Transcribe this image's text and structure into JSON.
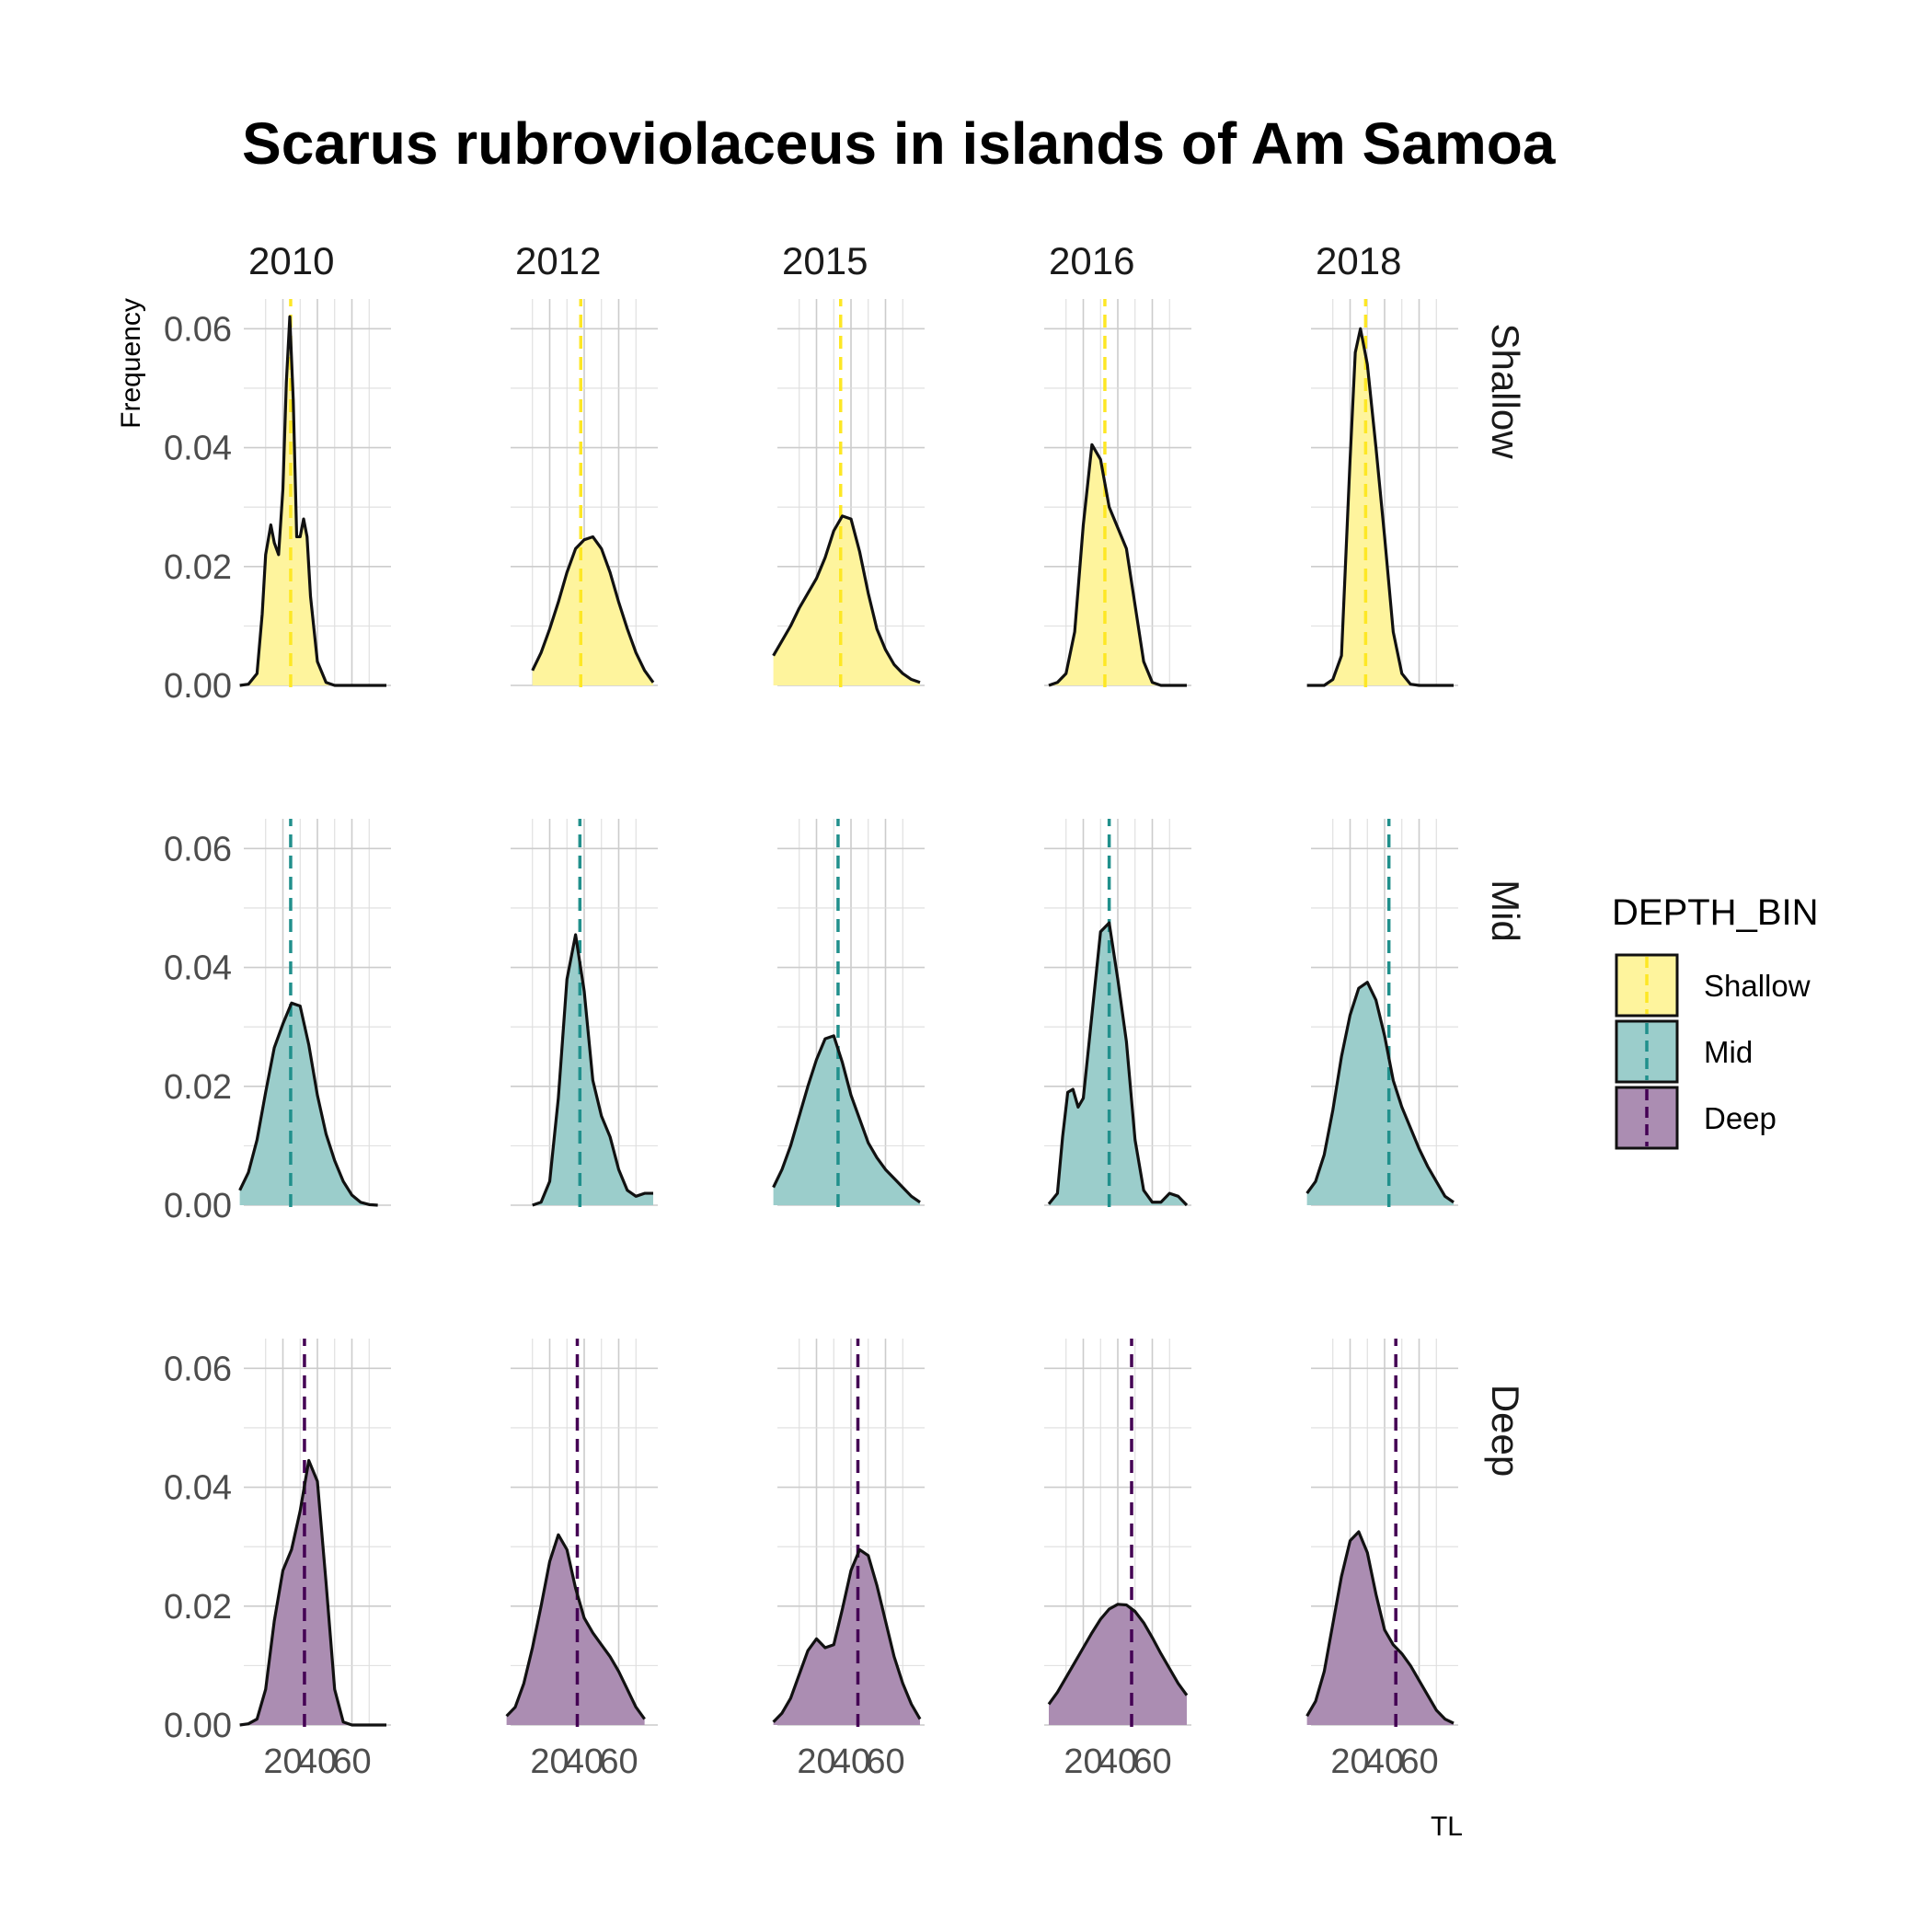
{
  "chart_data": {
    "type": "area",
    "title": "Scarus rubroviolaceus in islands of Am Samoa",
    "xlabel": "TL",
    "ylabel": "Frequency",
    "xlim": [
      0,
      80
    ],
    "ylim": [
      0,
      0.065
    ],
    "x_ticks": [
      20,
      40,
      60
    ],
    "x_tick_labels": [
      "20",
      "40",
      "60"
    ],
    "y_ticks": [
      0,
      0.02,
      0.04,
      0.06
    ],
    "y_tick_labels": [
      "0.00",
      "0.02",
      "0.04",
      "0.06"
    ],
    "grid": true,
    "columns": [
      "2010",
      "2012",
      "2015",
      "2016",
      "2018"
    ],
    "rows": [
      "Shallow",
      "Mid",
      "Deep"
    ],
    "legend": {
      "title": "DEPTH_BIN",
      "placement": "right",
      "entries": [
        {
          "label": "Shallow",
          "color": "#fde725"
        },
        {
          "label": "Mid",
          "color": "#21908c"
        },
        {
          "label": "Deep",
          "color": "#440154"
        }
      ]
    },
    "series": [
      {
        "year": "2010",
        "depth": "Shallow",
        "mean": 24.5,
        "x": [
          -5,
          0,
          5,
          8,
          10,
          13,
          15,
          17.5,
          20,
          22,
          24,
          26,
          28,
          30,
          32,
          34,
          36,
          40,
          45,
          50,
          60,
          70,
          80
        ],
        "y": [
          0,
          0.0002,
          0.002,
          0.012,
          0.022,
          0.027,
          0.024,
          0.022,
          0.033,
          0.051,
          0.062,
          0.048,
          0.025,
          0.025,
          0.028,
          0.025,
          0.015,
          0.004,
          0.0005,
          0,
          0,
          0,
          0
        ]
      },
      {
        "year": "2012",
        "depth": "Shallow",
        "mean": 38,
        "x": [
          10,
          15,
          20,
          25,
          30,
          35,
          40,
          45,
          50,
          55,
          60,
          65,
          70,
          75,
          80
        ],
        "y": [
          0.0025,
          0.0055,
          0.0095,
          0.014,
          0.019,
          0.023,
          0.0245,
          0.025,
          0.023,
          0.019,
          0.014,
          0.0095,
          0.0055,
          0.0025,
          0.0005
        ]
      },
      {
        "year": "2015",
        "depth": "Shallow",
        "mean": 34,
        "x": [
          -5,
          0,
          5,
          10,
          15,
          20,
          25,
          30,
          35,
          40,
          45,
          50,
          55,
          60,
          65,
          70,
          75,
          80
        ],
        "y": [
          0.005,
          0.0075,
          0.01,
          0.013,
          0.0155,
          0.018,
          0.0215,
          0.026,
          0.0285,
          0.028,
          0.0225,
          0.0155,
          0.0095,
          0.006,
          0.0035,
          0.002,
          0.001,
          0.0005
        ]
      },
      {
        "year": "2016",
        "depth": "Shallow",
        "mean": 32.5,
        "x": [
          0,
          5,
          10,
          15,
          20,
          25,
          30,
          35,
          40,
          45,
          50,
          55,
          60,
          65,
          70,
          75,
          80
        ],
        "y": [
          0,
          0.0005,
          0.002,
          0.009,
          0.027,
          0.0405,
          0.038,
          0.03,
          0.0265,
          0.023,
          0.0135,
          0.004,
          0.0005,
          0,
          0,
          0,
          0
        ]
      },
      {
        "year": "2018",
        "depth": "Shallow",
        "mean": 29,
        "x": [
          -5,
          5,
          10,
          15,
          20,
          23,
          26,
          30,
          35,
          40,
          45,
          50,
          55,
          60,
          70,
          80
        ],
        "y": [
          0,
          0,
          0.001,
          0.005,
          0.038,
          0.056,
          0.06,
          0.054,
          0.04,
          0.025,
          0.009,
          0.002,
          0.0002,
          0,
          0,
          0
        ]
      },
      {
        "year": "2010",
        "depth": "Mid",
        "mean": 24.5,
        "x": [
          -5,
          0,
          5,
          10,
          15,
          20,
          25,
          30,
          35,
          40,
          45,
          50,
          55,
          60,
          65,
          70,
          75
        ],
        "y": [
          0.0025,
          0.0055,
          0.011,
          0.019,
          0.0265,
          0.0305,
          0.034,
          0.0335,
          0.027,
          0.0185,
          0.012,
          0.0075,
          0.004,
          0.0017,
          0.0005,
          0.0001,
          0
        ]
      },
      {
        "year": "2012",
        "depth": "Mid",
        "mean": 37.5,
        "x": [
          10,
          15,
          20,
          25,
          30,
          35,
          40,
          45,
          50,
          55,
          60,
          65,
          70,
          75,
          80
        ],
        "y": [
          0,
          0.0005,
          0.004,
          0.018,
          0.038,
          0.0455,
          0.036,
          0.021,
          0.015,
          0.0115,
          0.006,
          0.0025,
          0.0015,
          0.002,
          0.002
        ]
      },
      {
        "year": "2015",
        "depth": "Mid",
        "mean": 32.5,
        "x": [
          -5,
          0,
          5,
          10,
          15,
          20,
          25,
          30,
          35,
          40,
          45,
          50,
          55,
          60,
          65,
          70,
          75,
          80
        ],
        "y": [
          0.003,
          0.006,
          0.01,
          0.015,
          0.02,
          0.0245,
          0.028,
          0.0285,
          0.024,
          0.0185,
          0.0145,
          0.0105,
          0.008,
          0.006,
          0.0045,
          0.003,
          0.0015,
          0.0005
        ]
      },
      {
        "year": "2016",
        "depth": "Mid",
        "mean": 35,
        "x": [
          0,
          5,
          8,
          11,
          14,
          17,
          20,
          25,
          30,
          35,
          40,
          45,
          50,
          55,
          60,
          65,
          70,
          75,
          80
        ],
        "y": [
          0.0002,
          0.002,
          0.0115,
          0.019,
          0.0195,
          0.0165,
          0.018,
          0.032,
          0.046,
          0.0475,
          0.038,
          0.0275,
          0.011,
          0.0025,
          0.0005,
          0.0005,
          0.002,
          0.0015,
          0
        ]
      },
      {
        "year": "2018",
        "depth": "Mid",
        "mean": 42.5,
        "x": [
          -5,
          0,
          5,
          10,
          15,
          20,
          25,
          30,
          35,
          40,
          45,
          50,
          55,
          60,
          65,
          70,
          75,
          80
        ],
        "y": [
          0.002,
          0.004,
          0.0085,
          0.016,
          0.025,
          0.032,
          0.0365,
          0.0375,
          0.0345,
          0.0285,
          0.021,
          0.0165,
          0.013,
          0.0095,
          0.0065,
          0.004,
          0.0015,
          0.0005
        ]
      },
      {
        "year": "2010",
        "depth": "Deep",
        "mean": 32.5,
        "x": [
          -5,
          0,
          5,
          10,
          15,
          20,
          25,
          30,
          35,
          40,
          45,
          50,
          55,
          60,
          70,
          80
        ],
        "y": [
          0,
          0.0002,
          0.001,
          0.006,
          0.0175,
          0.026,
          0.0295,
          0.036,
          0.0445,
          0.041,
          0.024,
          0.006,
          0.0005,
          0,
          0,
          0
        ]
      },
      {
        "year": "2012",
        "depth": "Deep",
        "mean": 36,
        "x": [
          -5,
          0,
          5,
          10,
          15,
          20,
          25,
          30,
          35,
          40,
          45,
          50,
          55,
          60,
          65,
          70,
          75
        ],
        "y": [
          0.0015,
          0.003,
          0.007,
          0.013,
          0.02,
          0.0275,
          0.032,
          0.0295,
          0.023,
          0.018,
          0.0155,
          0.0135,
          0.0115,
          0.009,
          0.006,
          0.003,
          0.001
        ]
      },
      {
        "year": "2015",
        "depth": "Deep",
        "mean": 44,
        "x": [
          -5,
          0,
          5,
          10,
          15,
          20,
          25,
          30,
          35,
          40,
          45,
          50,
          55,
          60,
          65,
          70,
          75,
          80
        ],
        "y": [
          0.0005,
          0.002,
          0.0045,
          0.0085,
          0.0125,
          0.0145,
          0.013,
          0.0135,
          0.0195,
          0.026,
          0.0295,
          0.0285,
          0.0235,
          0.0175,
          0.0115,
          0.007,
          0.0035,
          0.001
        ]
      },
      {
        "year": "2016",
        "depth": "Deep",
        "mean": 48,
        "x": [
          0,
          5,
          10,
          15,
          20,
          25,
          30,
          35,
          40,
          45,
          50,
          55,
          60,
          65,
          70,
          75,
          80
        ],
        "y": [
          0.0035,
          0.0055,
          0.008,
          0.0105,
          0.013,
          0.0155,
          0.0178,
          0.0195,
          0.0203,
          0.0202,
          0.0191,
          0.0172,
          0.0147,
          0.012,
          0.0095,
          0.007,
          0.005
        ]
      },
      {
        "year": "2018",
        "depth": "Deep",
        "mean": 46.5,
        "x": [
          -5,
          0,
          5,
          10,
          15,
          20,
          25,
          30,
          35,
          40,
          45,
          50,
          55,
          60,
          65,
          70,
          75,
          80
        ],
        "y": [
          0.0015,
          0.004,
          0.009,
          0.017,
          0.025,
          0.031,
          0.0325,
          0.029,
          0.022,
          0.016,
          0.0135,
          0.012,
          0.01,
          0.0075,
          0.005,
          0.0025,
          0.001,
          0.0003
        ]
      }
    ]
  }
}
